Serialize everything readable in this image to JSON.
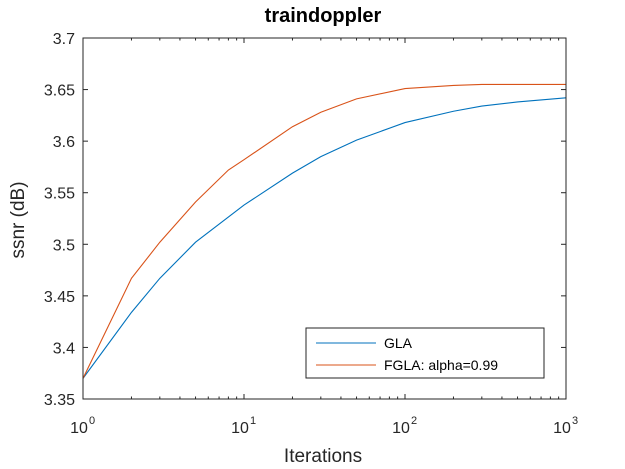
{
  "chart_data": {
    "type": "line",
    "title": "traindoppler",
    "xlabel": "Iterations",
    "ylabel": "ssnr (dB)",
    "xscale": "log",
    "xlim": [
      1,
      1000
    ],
    "ylim": [
      3.35,
      3.7
    ],
    "xticks": [
      {
        "value": 1,
        "base": "10",
        "exp": "0"
      },
      {
        "value": 10,
        "base": "10",
        "exp": "1"
      },
      {
        "value": 100,
        "base": "10",
        "exp": "2"
      },
      {
        "value": 1000,
        "base": "10",
        "exp": "3"
      }
    ],
    "yticks": [
      {
        "value": 3.35,
        "label": "3.35"
      },
      {
        "value": 3.4,
        "label": "3.4"
      },
      {
        "value": 3.45,
        "label": "3.45"
      },
      {
        "value": 3.5,
        "label": "3.5"
      },
      {
        "value": 3.55,
        "label": "3.55"
      },
      {
        "value": 3.6,
        "label": "3.6"
      },
      {
        "value": 3.65,
        "label": "3.65"
      },
      {
        "value": 3.7,
        "label": "3.7"
      }
    ],
    "grid": false,
    "legend_position": "bottom-right",
    "series": [
      {
        "name": "GLA",
        "color": "#0072BD",
        "x": [
          1,
          2,
          3,
          5,
          10,
          20,
          30,
          50,
          100,
          200,
          300,
          500,
          1000
        ],
        "y": [
          3.37,
          3.434,
          3.467,
          3.502,
          3.538,
          3.569,
          3.585,
          3.601,
          3.618,
          3.629,
          3.634,
          3.638,
          3.642
        ]
      },
      {
        "name": "FGLA: alpha=0.99",
        "color": "#D95319",
        "x": [
          1,
          2,
          3,
          5,
          8,
          10,
          20,
          30,
          50,
          100,
          200,
          300,
          500,
          1000
        ],
        "y": [
          3.37,
          3.467,
          3.502,
          3.541,
          3.572,
          3.582,
          3.614,
          3.628,
          3.641,
          3.651,
          3.654,
          3.655,
          3.655,
          3.655
        ]
      }
    ]
  }
}
